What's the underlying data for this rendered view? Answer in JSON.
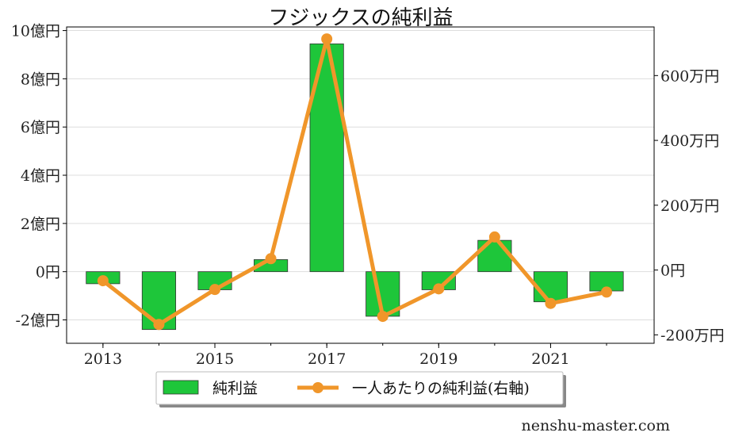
{
  "chart_data": {
    "type": "bar",
    "title": "フジックスの純利益",
    "x": [
      2013,
      2014,
      2015,
      2016,
      2017,
      2018,
      2019,
      2020,
      2021,
      2022
    ],
    "x_tick_labels": [
      "2013",
      "2015",
      "2017",
      "2019",
      "2021"
    ],
    "xlim": [
      2012.35,
      2022.85
    ],
    "series": [
      {
        "name": "純利益",
        "kind": "bar",
        "axis": "left",
        "unit": "億円",
        "color": "#1ec63a",
        "values": [
          -0.5,
          -2.4,
          -0.75,
          0.5,
          9.45,
          -1.85,
          -0.75,
          1.3,
          -1.25,
          -0.8
        ]
      },
      {
        "name": "一人あたりの純利益(右軸)",
        "kind": "line",
        "axis": "right",
        "unit": "万円",
        "color": "#f0962a",
        "values": [
          -33,
          -168,
          -60,
          35,
          713,
          -143,
          -58,
          102,
          -103,
          -68
        ]
      }
    ],
    "left_axis": {
      "ylim": [
        -2.97,
        10.15
      ],
      "ticks": [
        -2,
        0,
        2,
        4,
        6,
        8,
        10
      ],
      "tick_labels": [
        "-2億円",
        "0円",
        "2億円",
        "4億円",
        "6億円",
        "8億円",
        "10億円"
      ]
    },
    "right_axis": {
      "ylim": [
        -226,
        750
      ],
      "ticks": [
        -200,
        0,
        200,
        400,
        600
      ],
      "tick_labels": [
        "-200万円",
        "0円",
        "200万円",
        "400万円",
        "600万円"
      ]
    },
    "grid": true,
    "legend": {
      "placement": "bottom-center",
      "entries": [
        "純利益",
        "一人あたりの純利益(右軸)"
      ]
    },
    "watermark": "nenshu-master.com"
  }
}
